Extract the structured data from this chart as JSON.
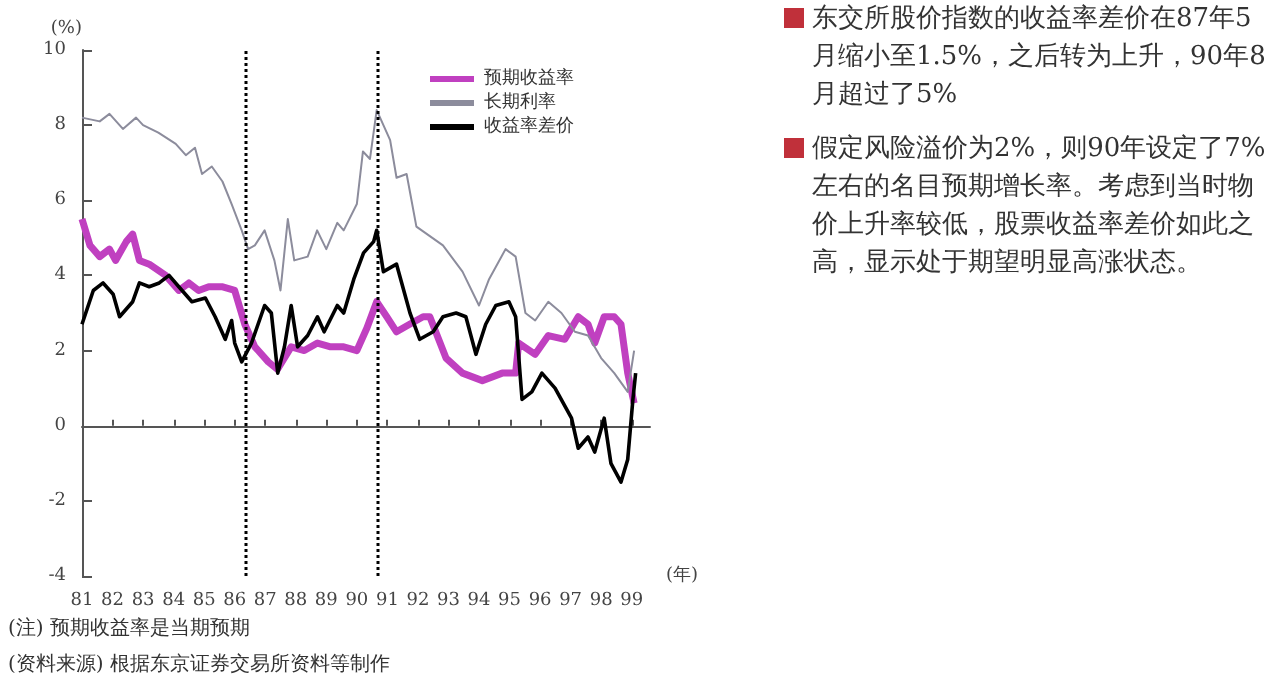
{
  "chart_data": {
    "type": "line",
    "ylabel": "(%)",
    "xlabel": "(年)",
    "xlim": [
      1981,
      1999.6
    ],
    "xticks": [
      {
        "value": 1981,
        "label": "81"
      },
      {
        "value": 1982,
        "label": "82"
      },
      {
        "value": 1983,
        "label": "83"
      },
      {
        "value": 1984,
        "label": "84"
      },
      {
        "value": 1985,
        "label": "85"
      },
      {
        "value": 1986,
        "label": "86"
      },
      {
        "value": 1987,
        "label": "87"
      },
      {
        "value": 1988,
        "label": "88"
      },
      {
        "value": 1989,
        "label": "89"
      },
      {
        "value": 1990,
        "label": "90"
      },
      {
        "value": 1991,
        "label": "91"
      },
      {
        "value": 1992,
        "label": "92"
      },
      {
        "value": 1993,
        "label": "93"
      },
      {
        "value": 1994,
        "label": "94"
      },
      {
        "value": 1995,
        "label": "95"
      },
      {
        "value": 1996,
        "label": "96"
      },
      {
        "value": 1997,
        "label": "97"
      },
      {
        "value": 1998,
        "label": "98"
      },
      {
        "value": 1999,
        "label": "99"
      }
    ],
    "ylim": [
      -4,
      10
    ],
    "yticks": [
      -4,
      -2,
      0,
      2,
      4,
      6,
      8,
      10
    ],
    "legend": "top",
    "marker": "none",
    "line_style": "solid",
    "series": [
      {
        "name": "预期收益率",
        "color": "#c040c0",
        "x": [
          1981,
          1981.26,
          1981.58,
          1981.9,
          1982.1,
          1982.45,
          1982.66,
          1982.88,
          1983.2,
          1983.74,
          1984.17,
          1984.5,
          1984.82,
          1985.15,
          1985.58,
          1986,
          1986.33,
          1986.66,
          1987.1,
          1987.4,
          1987.85,
          1988.28,
          1988.71,
          1989.14,
          1989.57,
          1990,
          1990.33,
          1990.65,
          1990.98,
          1991.3,
          1991.73,
          1992.17,
          1992.39,
          1992.92,
          1993.46,
          1994.11,
          1994.76,
          1995.2,
          1995.3,
          1995.84,
          1996.27,
          1996.81,
          1997.25,
          1997.57,
          1997.79,
          1998.1,
          1998.43,
          1998.65,
          1998.87,
          1999.08
        ],
        "values": [
          5.5,
          4.8,
          4.5,
          4.7,
          4.4,
          4.9,
          5.1,
          4.4,
          4.3,
          4,
          3.6,
          3.8,
          3.6,
          3.7,
          3.7,
          3.6,
          2.7,
          2.1,
          1.7,
          1.5,
          2.1,
          2,
          2.2,
          2.1,
          2.1,
          2,
          2.6,
          3.3,
          2.9,
          2.5,
          2.7,
          2.9,
          2.9,
          1.8,
          1.4,
          1.2,
          1.4,
          1.4,
          2.2,
          1.9,
          2.4,
          2.3,
          2.9,
          2.7,
          2.2,
          2.9,
          2.9,
          2.7,
          1.4,
          0.6
        ]
      },
      {
        "name": "长期利率",
        "color": "#8c8c9c",
        "x": [
          1981,
          1981.58,
          1981.9,
          1982.34,
          1982.77,
          1983,
          1983.5,
          1984.07,
          1984.4,
          1984.7,
          1984.93,
          1985.25,
          1985.6,
          1985.9,
          1986.23,
          1986.44,
          1986.66,
          1986.98,
          1987.3,
          1987.5,
          1987.74,
          1987.95,
          1988.39,
          1988.7,
          1989,
          1989.36,
          1989.57,
          1990,
          1990.2,
          1990.43,
          1990.65,
          1991.09,
          1991.3,
          1991.63,
          1991.95,
          1992.82,
          1993.46,
          1994,
          1994.33,
          1994.87,
          1995.2,
          1995.52,
          1995.84,
          1996.27,
          1996.7,
          1997.14,
          1997.57,
          1998,
          1998.43,
          1998.87,
          1999.08
        ],
        "values": [
          8.2,
          8.1,
          8.3,
          7.9,
          8.2,
          8,
          7.8,
          7.5,
          7.2,
          7.4,
          6.7,
          6.9,
          6.5,
          5.9,
          5.2,
          4.7,
          4.8,
          5.2,
          4.4,
          3.6,
          5.5,
          4.4,
          4.5,
          5.2,
          4.7,
          5.4,
          5.2,
          5.9,
          7.3,
          7.1,
          8.4,
          7.6,
          6.6,
          6.7,
          5.3,
          4.8,
          4.1,
          3.2,
          3.9,
          4.7,
          4.5,
          3,
          2.8,
          3.3,
          3,
          2.5,
          2.4,
          1.8,
          1.4,
          0.9,
          2
        ]
      },
      {
        "name": "收益率差价",
        "color": "#000000",
        "x": [
          1981,
          1981.37,
          1981.69,
          1982.02,
          1982.23,
          1982.66,
          1982.88,
          1983.2,
          1983.53,
          1983.85,
          1984.17,
          1984.6,
          1985.04,
          1985.36,
          1985.69,
          1985.9,
          1986,
          1986.23,
          1986.55,
          1986.98,
          1987.2,
          1987.41,
          1987.63,
          1987.85,
          1988.06,
          1988.39,
          1988.71,
          1988.93,
          1989.36,
          1989.57,
          1989.9,
          1990.22,
          1990.55,
          1990.65,
          1990.87,
          1991.3,
          1991.74,
          1992.06,
          1992.5,
          1992.82,
          1993.25,
          1993.57,
          1993.9,
          1994.22,
          1994.55,
          1994.98,
          1995.2,
          1995.41,
          1995.73,
          1996.06,
          1996.49,
          1997.03,
          1997.25,
          1997.57,
          1997.79,
          1998.1,
          1998.32,
          1998.65,
          1998.87,
          1999.04,
          1999.13
        ],
        "values": [
          2.7,
          3.6,
          3.8,
          3.5,
          2.9,
          3.3,
          3.8,
          3.7,
          3.8,
          4,
          3.7,
          3.3,
          3.4,
          2.9,
          2.3,
          2.8,
          2.2,
          1.7,
          2.2,
          3.2,
          3,
          1.4,
          2.1,
          3.2,
          2.1,
          2.4,
          2.9,
          2.5,
          3.2,
          3,
          3.9,
          4.6,
          4.9,
          5.2,
          4.1,
          4.3,
          3,
          2.3,
          2.5,
          2.9,
          3,
          2.9,
          1.9,
          2.7,
          3.2,
          3.3,
          2.9,
          0.7,
          0.9,
          1.4,
          1,
          0.2,
          -0.6,
          -0.3,
          -0.7,
          0.2,
          -1,
          -1.5,
          -0.9,
          0.7,
          1.4
        ]
      }
    ],
    "ref_lines": [
      {
        "axis": "x",
        "value": 1986.35,
        "line_style": "dotted",
        "color": "#000000"
      },
      {
        "axis": "x",
        "value": 1990.65,
        "line_style": "dotted",
        "color": "#000000"
      }
    ],
    "annotations": [
      "东交所股价指数的收益率差价在87年5月缩小至1.5%，之后转为上升，90年8月超过了5%",
      "假定风险溢价为2%，则90年设定了7%左右的名目预期增长率。考虑到当时物价上升率较低，股票收益率差价如此之高，显示处于期望明显高涨状态。",
      "(注) 预期收益率是当期预期",
      "(资料来源) 根据东京证券交易所资料等制作"
    ]
  }
}
